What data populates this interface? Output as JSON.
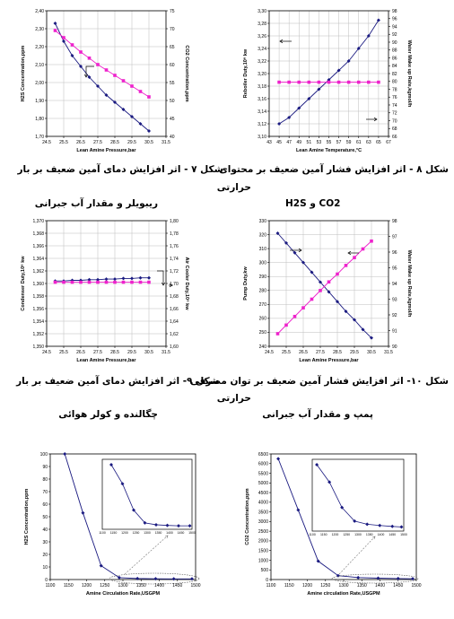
{
  "captions": {
    "fig7": {
      "line1": "شکل ۷ - اثر افزایش دمای آمین ضعیف بر بار",
      "line2": "ریبویلر و مقدار آب جبرانی"
    },
    "fig8": {
      "line1": "شکل ۸ - اثر افزایش فشار آمین ضعیف بر محتوای",
      "line2": "حرارتی",
      "line3": "H2S و CO2"
    },
    "fig9": {
      "line1": "شکل ۹- اثر افزایش دمای آمین ضعیف بر بار",
      "line2": "چگالنده و کولر هوائی"
    },
    "fig10": {
      "line1": "شکل ۱۰- اثر افزایش فشار آمین ضعیف بر توان مصرفی",
      "line2": "حرارتی",
      "line3": "پمپ و مقدار آب جبرانی"
    }
  },
  "chart_data": [
    {
      "id": "c1",
      "type": "line",
      "xlabel": "Lean Amine Pressure,bar",
      "ylabel": "H2S Concentration,ppm",
      "y2label": "CO2 Concentration,ppm",
      "xlim": [
        24.5,
        31.5
      ],
      "xticks": [
        "24.5",
        "25.5",
        "26.5",
        "27.5",
        "28.5",
        "29.5",
        "30.5",
        "31.5"
      ],
      "ylim": [
        1.7,
        2.4
      ],
      "yticks": [
        "1,70",
        "1,80",
        "1,90",
        "2,00",
        "2,10",
        "2,20",
        "2,30",
        "2,40"
      ],
      "y2lim": [
        40,
        75
      ],
      "y2ticks": [
        "40",
        "45",
        "50",
        "55",
        "60",
        "65",
        "70",
        "75"
      ],
      "grid": true,
      "series": [
        {
          "axis": "left",
          "color": "#1a1a80",
          "marker": "diamond",
          "x": [
            25.0,
            25.5,
            26.0,
            26.5,
            27.0,
            27.5,
            28.0,
            28.5,
            29.0,
            29.5,
            30.0,
            30.5
          ],
          "y": [
            2.33,
            2.23,
            2.15,
            2.09,
            2.03,
            1.98,
            1.93,
            1.89,
            1.85,
            1.81,
            1.77,
            1.73
          ]
        },
        {
          "axis": "right",
          "color": "#ee22cc",
          "marker": "square",
          "x": [
            25.0,
            25.5,
            26.0,
            26.5,
            27.0,
            27.5,
            28.0,
            28.5,
            29.0,
            29.5,
            30.0,
            30.5
          ],
          "y": [
            69.5,
            67.5,
            65.5,
            63.5,
            61.8,
            60.0,
            58.5,
            57.0,
            55.5,
            54.0,
            52.5,
            51.0
          ]
        }
      ]
    },
    {
      "id": "c2",
      "type": "line",
      "xlabel": "Lean Amine Temperature,°C",
      "ylabel": "Reboiler Duty,10⁶ kw",
      "y2label": "Water Make up Rate,kgmol/h",
      "xlim": [
        43,
        67
      ],
      "xticks": [
        "43",
        "45",
        "47",
        "49",
        "51",
        "53",
        "55",
        "57",
        "59",
        "61",
        "63",
        "65",
        "67"
      ],
      "ylim": [
        3.1,
        3.3
      ],
      "yticks": [
        "3,10",
        "3,12",
        "3,14",
        "3,16",
        "3,18",
        "3,20",
        "3,22",
        "3,24",
        "3,26",
        "3,28",
        "3,30"
      ],
      "y2lim": [
        66,
        98
      ],
      "y2ticks": [
        "66",
        "68",
        "70",
        "72",
        "74",
        "76",
        "78",
        "80",
        "82",
        "84",
        "86",
        "88",
        "90",
        "92",
        "94",
        "96",
        "98"
      ],
      "grid": true,
      "series": [
        {
          "axis": "left",
          "color": "#1a1a80",
          "marker": "diamond",
          "x": [
            45,
            47,
            49,
            51,
            53,
            55,
            57,
            59,
            61,
            63,
            65
          ],
          "y": [
            3.12,
            3.13,
            3.145,
            3.16,
            3.175,
            3.19,
            3.205,
            3.22,
            3.24,
            3.26,
            3.285
          ]
        },
        {
          "axis": "right",
          "color": "#ee22cc",
          "marker": "square",
          "x": [
            45,
            47,
            49,
            51,
            53,
            55,
            57,
            59,
            61,
            63,
            65
          ],
          "y": [
            79.8,
            79.8,
            79.8,
            79.8,
            79.8,
            79.8,
            79.8,
            79.8,
            79.8,
            79.8,
            79.8
          ]
        }
      ]
    },
    {
      "id": "c3",
      "type": "line",
      "xlabel": "Lean Amine Pressure,bar",
      "ylabel": "Condenser Duty,10⁶ kw",
      "y2label": "Air Cooler Duty,10⁶ kw",
      "xlim": [
        24.5,
        31.5
      ],
      "xticks": [
        "24.5",
        "25.5",
        "26.5",
        "27.5",
        "28.5",
        "29.5",
        "30.5",
        "31.5"
      ],
      "ylim": [
        1.35,
        1.37
      ],
      "yticks": [
        "1,350",
        "1,352",
        "1,354",
        "1,356",
        "1,358",
        "1,360",
        "1,362",
        "1,364",
        "1,366",
        "1,368",
        "1,370"
      ],
      "y2lim": [
        1.6,
        1.8
      ],
      "y2ticks": [
        "1,60",
        "1,62",
        "1,64",
        "1,66",
        "1,68",
        "1,70",
        "1,72",
        "1,74",
        "1,76",
        "1,78",
        "1,80"
      ],
      "grid": true,
      "series": [
        {
          "axis": "left",
          "color": "#1a1a80",
          "marker": "diamond",
          "x": [
            25.0,
            25.5,
            26.0,
            26.5,
            27.0,
            27.5,
            28.0,
            28.5,
            29.0,
            29.5,
            30.0,
            30.5
          ],
          "y": [
            1.3604,
            1.3604,
            1.3605,
            1.3605,
            1.3606,
            1.3606,
            1.3607,
            1.3607,
            1.3608,
            1.3608,
            1.3609,
            1.3609
          ]
        },
        {
          "axis": "right",
          "color": "#ee22cc",
          "marker": "square",
          "x": [
            25.0,
            25.5,
            26.0,
            26.5,
            27.0,
            27.5,
            28.0,
            28.5,
            29.0,
            29.5,
            30.0,
            30.5
          ],
          "y": [
            1.702,
            1.702,
            1.702,
            1.702,
            1.702,
            1.702,
            1.702,
            1.702,
            1.702,
            1.702,
            1.702,
            1.702
          ]
        }
      ]
    },
    {
      "id": "c4",
      "type": "line",
      "xlabel": "Lean Amine Pressure,bar",
      "ylabel": "Pump Duty,kw",
      "y2label": "Water Make up Rate,kgmol/h",
      "xlim": [
        24.5,
        31.5
      ],
      "xticks": [
        "24.5",
        "25.5",
        "26.5",
        "27.5",
        "28.5",
        "29.5",
        "30.5",
        "31.5"
      ],
      "ylim": [
        240,
        330
      ],
      "yticks": [
        "240",
        "250",
        "260",
        "270",
        "280",
        "290",
        "300",
        "310",
        "320",
        "330"
      ],
      "y2lim": [
        90,
        98
      ],
      "y2ticks": [
        "90",
        "91",
        "92",
        "93",
        "94",
        "95",
        "96",
        "97",
        "98"
      ],
      "grid": true,
      "series": [
        {
          "axis": "left",
          "color": "#1a1a80",
          "marker": "diamond",
          "x": [
            25.0,
            25.5,
            26.0,
            26.5,
            27.0,
            27.5,
            28.0,
            28.5,
            29.0,
            29.5,
            30.0,
            30.5
          ],
          "y": [
            321,
            314,
            307,
            300,
            293,
            286,
            279,
            272,
            265,
            259,
            252,
            246
          ]
        },
        {
          "axis": "right",
          "color": "#ee22cc",
          "marker": "square",
          "x": [
            25.0,
            25.5,
            26.0,
            26.5,
            27.0,
            27.5,
            28.0,
            28.5,
            29.0,
            29.5,
            30.0,
            30.5
          ],
          "y": [
            90.8,
            91.35,
            91.9,
            92.45,
            93.0,
            93.55,
            94.1,
            94.6,
            95.15,
            95.65,
            96.2,
            96.7
          ]
        }
      ]
    },
    {
      "id": "c5",
      "type": "line",
      "xlabel": "Amine Circulation Rate,USGPM",
      "ylabel": "H2S Concentration,ppm",
      "xlim": [
        1100,
        1500
      ],
      "xticks": [
        "1100",
        "1150",
        "1200",
        "1250",
        "1300",
        "1350",
        "1400",
        "1450",
        "1500"
      ],
      "ylim": [
        0,
        100
      ],
      "yticks": [
        "0",
        "10",
        "20",
        "30",
        "40",
        "50",
        "60",
        "70",
        "80",
        "90",
        "100"
      ],
      "grid": false,
      "series": [
        {
          "axis": "left",
          "color": "#1a1a80",
          "marker": "diamond",
          "x": [
            1140,
            1190,
            1240,
            1290,
            1340,
            1390,
            1440,
            1490
          ],
          "y": [
            100,
            53,
            11,
            1.5,
            0.8,
            0.6,
            0.5,
            0.5
          ]
        }
      ],
      "inset": {
        "x": [
          1140,
          1190,
          1240,
          1290,
          1340,
          1390,
          1440,
          1490
        ],
        "y": [
          100,
          53,
          11,
          1.5,
          0.8,
          0.6,
          0.5,
          0.5
        ],
        "xticks": [
          "1100",
          "1150",
          "1200",
          "1250",
          "1300",
          "1350",
          "1400",
          "1450",
          "1500"
        ]
      }
    },
    {
      "id": "c6",
      "type": "line",
      "xlabel": "Amine circulation Rate,USGPM",
      "ylabel": "CO2 Concentration,ppm",
      "xlim": [
        1100,
        1500
      ],
      "xticks": [
        "1100",
        "1150",
        "1200",
        "1250",
        "1300",
        "1350",
        "1400",
        "1450",
        "1500"
      ],
      "ylim": [
        0,
        6500
      ],
      "yticks": [
        "0",
        "500",
        "1000",
        "1500",
        "2000",
        "2500",
        "3000",
        "3500",
        "4000",
        "4500",
        "5000",
        "5500",
        "6000",
        "6500"
      ],
      "grid": false,
      "series": [
        {
          "axis": "left",
          "color": "#1a1a80",
          "marker": "diamond",
          "x": [
            1120,
            1175,
            1230,
            1285,
            1340,
            1395,
            1450,
            1490
          ],
          "y": [
            6250,
            3600,
            950,
            200,
            100,
            70,
            50,
            40
          ]
        }
      ],
      "inset": {
        "x": [
          1120,
          1175,
          1230,
          1285,
          1340,
          1395,
          1450,
          1490
        ],
        "y": [
          6250,
          3600,
          950,
          200,
          100,
          70,
          50,
          40
        ],
        "xticks": [
          "1100",
          "1150",
          "1200",
          "1250",
          "1300",
          "1350",
          "1400",
          "1450",
          "1500"
        ]
      }
    }
  ]
}
